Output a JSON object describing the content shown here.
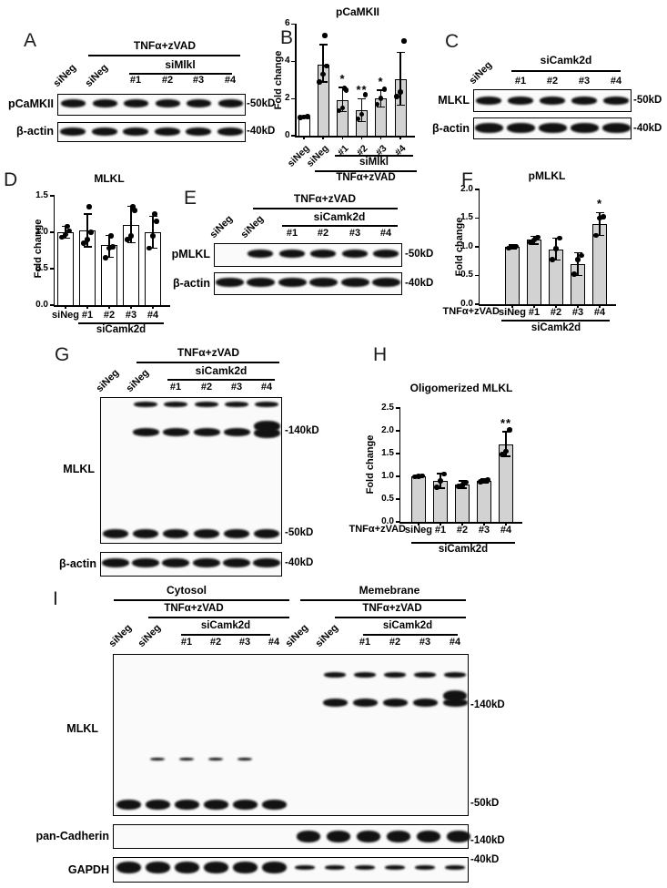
{
  "panels": {
    "A": {
      "letter": "A",
      "treatment": "TNFα+zVAD",
      "sirna_group": "siMlkl",
      "lanes": [
        "siNeg",
        "siNeg",
        "#1",
        "#2",
        "#3",
        "#4"
      ],
      "rows": [
        {
          "label": "pCaMKII",
          "marker": "-50kD",
          "bands": [
            0.38,
            1.0,
            0.55,
            0.38,
            0.62,
            0.95
          ]
        },
        {
          "label": "β-actin",
          "marker": "-40kD",
          "bands": [
            0.85,
            0.97,
            0.8,
            0.75,
            0.85,
            0.92
          ]
        }
      ]
    },
    "C": {
      "letter": "C",
      "sirna_group": "siCamk2d",
      "lanes": [
        "siNeg",
        "#1",
        "#2",
        "#3",
        "#4"
      ],
      "rows": [
        {
          "label": "MLKL",
          "marker": "-50kD",
          "bands": [
            0.72,
            0.75,
            0.55,
            0.78,
            0.92
          ]
        },
        {
          "label": "β-actin",
          "marker": "-40kD",
          "bands": [
            0.95,
            0.9,
            0.9,
            0.95,
            0.95
          ]
        }
      ]
    },
    "E": {
      "letter": "E",
      "treatment": "TNFα+zVAD",
      "sirna_group": "siCamk2d",
      "lanes": [
        "siNeg",
        "siNeg",
        "#1",
        "#2",
        "#3",
        "#4"
      ],
      "rows": [
        {
          "label": "pMLKL",
          "marker": "-50kD",
          "bands": [
            0,
            0.65,
            0.78,
            0.55,
            0.55,
            1.0
          ]
        },
        {
          "label": "β-actin",
          "marker": "-40kD",
          "bands": [
            0.97,
            0.8,
            0.82,
            0.88,
            0.8,
            0.85
          ]
        }
      ]
    },
    "G": {
      "letter": "G",
      "treatment": "TNFα+zVAD",
      "sirna_group": "siCamk2d",
      "lanes": [
        "siNeg",
        "siNeg",
        "#1",
        "#2",
        "#3",
        "#4"
      ],
      "blot_label": "MLKL",
      "markers": {
        "kd140": "-140kD",
        "kd50": "-50kD",
        "kd40": "-40kD"
      },
      "bands_140_faint": [
        0,
        0.18,
        0.22,
        0.15,
        0.16,
        0.25
      ],
      "bands_140": [
        0,
        0.5,
        0.55,
        0.45,
        0.55,
        0.95
      ],
      "bands_50": [
        0.9,
        0.95,
        0.6,
        0.7,
        0.85,
        0.7
      ],
      "actin_label": "β-actin",
      "actin_bands": [
        0.85,
        0.7,
        0.65,
        0.72,
        0.9,
        0.75
      ]
    },
    "I": {
      "letter": "I",
      "fractions": [
        {
          "label": "Cytosol"
        },
        {
          "label": "Memebrane"
        }
      ],
      "treatment": "TNFα+zVAD",
      "sirna_group": "siCamk2d",
      "lanes_cytosol": [
        "siNeg",
        "siNeg",
        "#1",
        "#2",
        "#3",
        "#4"
      ],
      "lanes_membrane": [
        "siNeg",
        "siNeg",
        "#1",
        "#2",
        "#3",
        "#4"
      ],
      "mlkl": {
        "label": "MLKL",
        "marker_140": "-140kD",
        "marker_50": "-50kD",
        "bands_140_faint_membrane": [
          0,
          0.2,
          0.22,
          0.18,
          0.16,
          0.22
        ],
        "bands_140_membrane": [
          0,
          0.5,
          0.6,
          0.52,
          0.5,
          0.82
        ],
        "bands_50_cytosol": [
          0.95,
          0.95,
          0.7,
          0.75,
          0.65,
          0.98
        ]
      },
      "cadherin": {
        "label": "pan-Cadherin",
        "marker": "-140kD",
        "bands_membrane": [
          0.6,
          0.65,
          0.75,
          0.7,
          0.85,
          0.75
        ]
      },
      "gapdh": {
        "label": "GAPDH",
        "marker": "-40kD",
        "bands_cytosol": [
          0.85,
          0.9,
          0.75,
          0.8,
          0.9,
          0.95
        ],
        "bands_membrane": [
          0.2,
          0.12,
          0.1,
          0.15,
          0.08,
          0.15
        ]
      }
    }
  },
  "chart_data": [
    {
      "panel": "B",
      "letter": "B",
      "type": "bar",
      "title": "pCaMKII",
      "ylabel": "Fold change",
      "ylim": [
        0,
        6
      ],
      "yticks": [
        0,
        2,
        4,
        6
      ],
      "ytick_decimals": 0,
      "categories": [
        "siNeg",
        "siNeg",
        "#1",
        "#2",
        "#3",
        "#4"
      ],
      "values": [
        1.0,
        3.8,
        1.9,
        1.35,
        2.0,
        3.05
      ],
      "err": [
        [
          1.0,
          1.0
        ],
        [
          2.9,
          4.9
        ],
        [
          1.3,
          2.6
        ],
        [
          0.75,
          2.0
        ],
        [
          1.55,
          2.45
        ],
        [
          1.65,
          4.5
        ]
      ],
      "points": [
        [
          0.98,
          1.0,
          1.02
        ],
        [
          2.9,
          3.3,
          3.75,
          5.4
        ],
        [
          1.35,
          1.5,
          2.45,
          2.55
        ],
        [
          0.9,
          1.15,
          2.2
        ],
        [
          1.7,
          2.0,
          2.5
        ],
        [
          2.1,
          2.35,
          5.1
        ]
      ],
      "sig": [
        "",
        "",
        "*",
        "**",
        "*",
        ""
      ],
      "bar_fills": [
        "#ffffff",
        "#d2d2d2",
        "#d2d2d2",
        "#d2d2d2",
        "#d2d2d2",
        "#d2d2d2"
      ],
      "group_labels": [
        {
          "text": "siMlkl"
        },
        {
          "text": "TNFα+zVAD"
        }
      ],
      "legend": "none",
      "grid": false
    },
    {
      "panel": "D",
      "letter": "D",
      "type": "bar",
      "title": "MLKL",
      "ylabel": "Fold change",
      "ylim": [
        0,
        1.5
      ],
      "yticks": [
        0,
        0.5,
        1.0,
        1.5
      ],
      "ytick_decimals": 1,
      "categories": [
        "siNeg",
        "#1",
        "#2",
        "#3",
        "#4"
      ],
      "values": [
        1.0,
        1.02,
        0.82,
        1.1,
        1.0
      ],
      "err": [
        [
          0.92,
          1.08
        ],
        [
          0.8,
          1.25
        ],
        [
          0.66,
          0.96
        ],
        [
          0.86,
          1.36
        ],
        [
          0.78,
          1.22
        ]
      ],
      "points": [
        [
          0.93,
          0.97,
          1.02,
          1.08
        ],
        [
          0.85,
          0.9,
          1.0,
          1.35
        ],
        [
          0.65,
          0.78,
          0.8,
          0.95
        ],
        [
          0.9,
          0.95,
          1.3,
          1.35
        ],
        [
          0.78,
          0.95,
          1.15,
          1.25
        ]
      ],
      "sig": [
        "",
        "",
        "",
        "",
        ""
      ],
      "bar_fills": [
        "#ffffff",
        "#ffffff",
        "#ffffff",
        "#ffffff",
        "#ffffff"
      ],
      "group_labels": [
        {
          "text": "siCamk2d"
        }
      ],
      "legend": "none",
      "grid": false
    },
    {
      "panel": "F",
      "letter": "F",
      "type": "bar",
      "title": "pMLKL",
      "ylabel": "Fold change",
      "x_prefix": "TNFα+zVAD",
      "ylim": [
        0,
        2.0
      ],
      "yticks": [
        0,
        0.5,
        1.0,
        1.5,
        2.0
      ],
      "ytick_decimals": 1,
      "categories": [
        "siNeg",
        "#1",
        "#2",
        "#3",
        "#4"
      ],
      "values": [
        1.0,
        1.12,
        0.96,
        0.7,
        1.4
      ],
      "err": [
        [
          0.97,
          1.03
        ],
        [
          1.05,
          1.18
        ],
        [
          0.77,
          1.15
        ],
        [
          0.5,
          0.9
        ],
        [
          1.2,
          1.6
        ]
      ],
      "points": [
        [
          0.98,
          1.0,
          1.01
        ],
        [
          1.08,
          1.12,
          1.17
        ],
        [
          0.78,
          0.97,
          1.15
        ],
        [
          0.52,
          0.78,
          0.85
        ],
        [
          1.2,
          1.5,
          1.52
        ]
      ],
      "sig": [
        "",
        "",
        "",
        "",
        "*"
      ],
      "bar_fills": [
        "#d2d2d2",
        "#d2d2d2",
        "#d2d2d2",
        "#d2d2d2",
        "#d2d2d2"
      ],
      "group_labels": [
        {
          "text": "siCamk2d"
        }
      ],
      "legend": "none",
      "grid": false
    },
    {
      "panel": "H",
      "letter": "H",
      "type": "bar",
      "title": "Oligomerized MLKL",
      "ylabel": "Fold change",
      "x_prefix": "TNFα+zVAD",
      "ylim": [
        0,
        2.5
      ],
      "yticks": [
        0,
        0.5,
        1.0,
        1.5,
        2.0,
        2.5
      ],
      "ytick_decimals": 1,
      "categories": [
        "siNeg",
        "#1",
        "#2",
        "#3",
        "#4"
      ],
      "values": [
        1.0,
        0.9,
        0.82,
        0.9,
        1.7
      ],
      "err": [
        [
          0.98,
          1.02
        ],
        [
          0.74,
          1.06
        ],
        [
          0.74,
          0.9
        ],
        [
          0.86,
          0.94
        ],
        [
          1.44,
          1.98
        ]
      ],
      "points": [
        [
          0.99,
          1.0,
          1.01
        ],
        [
          0.76,
          0.9,
          1.05
        ],
        [
          0.78,
          0.8,
          0.87
        ],
        [
          0.88,
          0.9,
          0.92
        ],
        [
          1.48,
          1.55,
          2.02
        ]
      ],
      "sig": [
        "",
        "",
        "",
        "",
        "**"
      ],
      "bar_fills": [
        "#d2d2d2",
        "#d2d2d2",
        "#d2d2d2",
        "#d2d2d2",
        "#d2d2d2"
      ],
      "group_labels": [
        {
          "text": "siCamk2d"
        }
      ],
      "legend": "none",
      "grid": false
    }
  ]
}
